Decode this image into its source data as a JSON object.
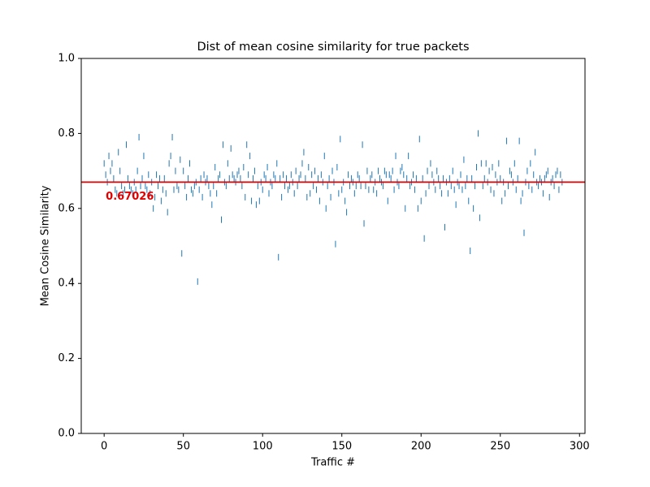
{
  "chart_data": {
    "type": "scatter",
    "title": "Dist of mean cosine similarity for true packets",
    "xlabel": "Traffic #",
    "ylabel": "Mean Cosine Similarity",
    "xlim": [
      -14.45,
      303.45
    ],
    "ylim": [
      0,
      1
    ],
    "xticks": [
      0,
      50,
      100,
      150,
      200,
      250,
      300
    ],
    "yticks": [
      {
        "value": 0,
        "label": "0.0"
      },
      {
        "value": 0.2,
        "label": "0.2"
      },
      {
        "value": 0.4,
        "label": "0.4"
      },
      {
        "value": 0.6,
        "label": "0.6"
      },
      {
        "value": 0.8,
        "label": "0.8"
      },
      {
        "value": 1,
        "label": "1.0"
      }
    ],
    "color": "#1f77b4",
    "hline": {
      "value": 0.67026,
      "label": "0.67026",
      "color": "#e00000"
    },
    "x": [
      0,
      1,
      2,
      3,
      4,
      5,
      6,
      7,
      8,
      9,
      10,
      11,
      12,
      13,
      14,
      15,
      16,
      17,
      18,
      19,
      20,
      21,
      22,
      23,
      24,
      25,
      26,
      27,
      28,
      29,
      30,
      31,
      32,
      33,
      34,
      35,
      36,
      37,
      38,
      39,
      40,
      41,
      42,
      43,
      44,
      45,
      46,
      47,
      48,
      49,
      50,
      51,
      52,
      53,
      54,
      55,
      56,
      57,
      58,
      59,
      60,
      61,
      62,
      63,
      64,
      65,
      66,
      67,
      68,
      69,
      70,
      71,
      72,
      73,
      74,
      75,
      76,
      77,
      78,
      79,
      80,
      81,
      82,
      83,
      84,
      85,
      86,
      87,
      88,
      89,
      90,
      91,
      92,
      93,
      94,
      95,
      96,
      97,
      98,
      99,
      100,
      101,
      102,
      103,
      104,
      105,
      106,
      107,
      108,
      109,
      110,
      111,
      112,
      113,
      114,
      115,
      116,
      117,
      118,
      119,
      120,
      121,
      122,
      123,
      124,
      125,
      126,
      127,
      128,
      129,
      130,
      131,
      132,
      133,
      134,
      135,
      136,
      137,
      138,
      139,
      140,
      141,
      142,
      143,
      144,
      145,
      146,
      147,
      148,
      149,
      150,
      151,
      152,
      153,
      154,
      155,
      156,
      157,
      158,
      159,
      160,
      161,
      162,
      163,
      164,
      165,
      166,
      167,
      168,
      169,
      170,
      171,
      172,
      173,
      174,
      175,
      176,
      177,
      178,
      179,
      180,
      181,
      182,
      183,
      184,
      185,
      186,
      187,
      188,
      189,
      190,
      191,
      192,
      193,
      194,
      195,
      196,
      197,
      198,
      199,
      200,
      201,
      202,
      203,
      204,
      205,
      206,
      207,
      208,
      209,
      210,
      211,
      212,
      213,
      214,
      215,
      216,
      217,
      218,
      219,
      220,
      221,
      222,
      223,
      224,
      225,
      226,
      227,
      228,
      229,
      230,
      231,
      232,
      233,
      234,
      235,
      236,
      237,
      238,
      239,
      240,
      241,
      242,
      243,
      244,
      245,
      246,
      247,
      248,
      249,
      250,
      251,
      252,
      253,
      254,
      255,
      256,
      257,
      258,
      259,
      260,
      261,
      262,
      263,
      264,
      265,
      266,
      267,
      268,
      269,
      270,
      271,
      272,
      273,
      274,
      275,
      276,
      277,
      278,
      279,
      280,
      281,
      282,
      283,
      284,
      285,
      286,
      287,
      288,
      289
    ],
    "values": [
      0.72,
      0.69,
      0.67,
      0.74,
      0.7,
      0.72,
      0.68,
      0.65,
      0.64,
      0.75,
      0.7,
      0.66,
      0.64,
      0.65,
      0.77,
      0.68,
      0.66,
      0.65,
      0.64,
      0.67,
      0.65,
      0.7,
      0.79,
      0.66,
      0.68,
      0.74,
      0.66,
      0.65,
      0.69,
      0.64,
      0.67,
      0.6,
      0.63,
      0.69,
      0.66,
      0.68,
      0.62,
      0.65,
      0.68,
      0.64,
      0.59,
      0.72,
      0.74,
      0.79,
      0.65,
      0.7,
      0.66,
      0.65,
      0.73,
      0.48,
      0.7,
      0.66,
      0.63,
      0.68,
      0.72,
      0.65,
      0.64,
      0.66,
      0.67,
      0.405,
      0.65,
      0.68,
      0.63,
      0.69,
      0.67,
      0.68,
      0.66,
      0.64,
      0.61,
      0.66,
      0.71,
      0.64,
      0.68,
      0.69,
      0.57,
      0.77,
      0.67,
      0.66,
      0.72,
      0.68,
      0.76,
      0.69,
      0.68,
      0.67,
      0.69,
      0.7,
      0.68,
      0.66,
      0.71,
      0.63,
      0.77,
      0.69,
      0.74,
      0.62,
      0.68,
      0.7,
      0.61,
      0.66,
      0.62,
      0.67,
      0.65,
      0.69,
      0.68,
      0.71,
      0.64,
      0.67,
      0.66,
      0.69,
      0.68,
      0.72,
      0.47,
      0.68,
      0.63,
      0.69,
      0.66,
      0.68,
      0.65,
      0.66,
      0.69,
      0.67,
      0.64,
      0.7,
      0.66,
      0.68,
      0.69,
      0.72,
      0.75,
      0.68,
      0.63,
      0.71,
      0.64,
      0.69,
      0.66,
      0.7,
      0.65,
      0.68,
      0.62,
      0.69,
      0.67,
      0.74,
      0.6,
      0.66,
      0.68,
      0.63,
      0.7,
      0.67,
      0.505,
      0.71,
      0.64,
      0.785,
      0.65,
      0.67,
      0.62,
      0.59,
      0.69,
      0.66,
      0.68,
      0.67,
      0.64,
      0.66,
      0.69,
      0.68,
      0.66,
      0.77,
      0.56,
      0.66,
      0.7,
      0.65,
      0.68,
      0.69,
      0.65,
      0.67,
      0.64,
      0.7,
      0.68,
      0.67,
      0.66,
      0.7,
      0.69,
      0.62,
      0.69,
      0.68,
      0.7,
      0.65,
      0.74,
      0.67,
      0.66,
      0.7,
      0.71,
      0.69,
      0.6,
      0.68,
      0.74,
      0.66,
      0.67,
      0.69,
      0.65,
      0.68,
      0.6,
      0.785,
      0.62,
      0.68,
      0.52,
      0.64,
      0.7,
      0.66,
      0.72,
      0.69,
      0.67,
      0.65,
      0.7,
      0.68,
      0.66,
      0.64,
      0.68,
      0.55,
      0.67,
      0.64,
      0.68,
      0.66,
      0.7,
      0.65,
      0.61,
      0.67,
      0.66,
      0.69,
      0.65,
      0.73,
      0.66,
      0.68,
      0.62,
      0.487,
      0.68,
      0.6,
      0.66,
      0.71,
      0.8,
      0.575,
      0.72,
      0.66,
      0.68,
      0.72,
      0.67,
      0.7,
      0.65,
      0.71,
      0.64,
      0.69,
      0.67,
      0.72,
      0.68,
      0.62,
      0.67,
      0.64,
      0.78,
      0.66,
      0.7,
      0.69,
      0.67,
      0.72,
      0.65,
      0.68,
      0.78,
      0.62,
      0.64,
      0.535,
      0.67,
      0.7,
      0.66,
      0.72,
      0.65,
      0.69,
      0.75,
      0.67,
      0.66,
      0.68,
      0.67,
      0.64,
      0.68,
      0.69,
      0.7,
      0.63,
      0.67,
      0.68,
      0.66,
      0.69,
      0.7,
      0.65,
      0.69,
      0.67
    ]
  }
}
